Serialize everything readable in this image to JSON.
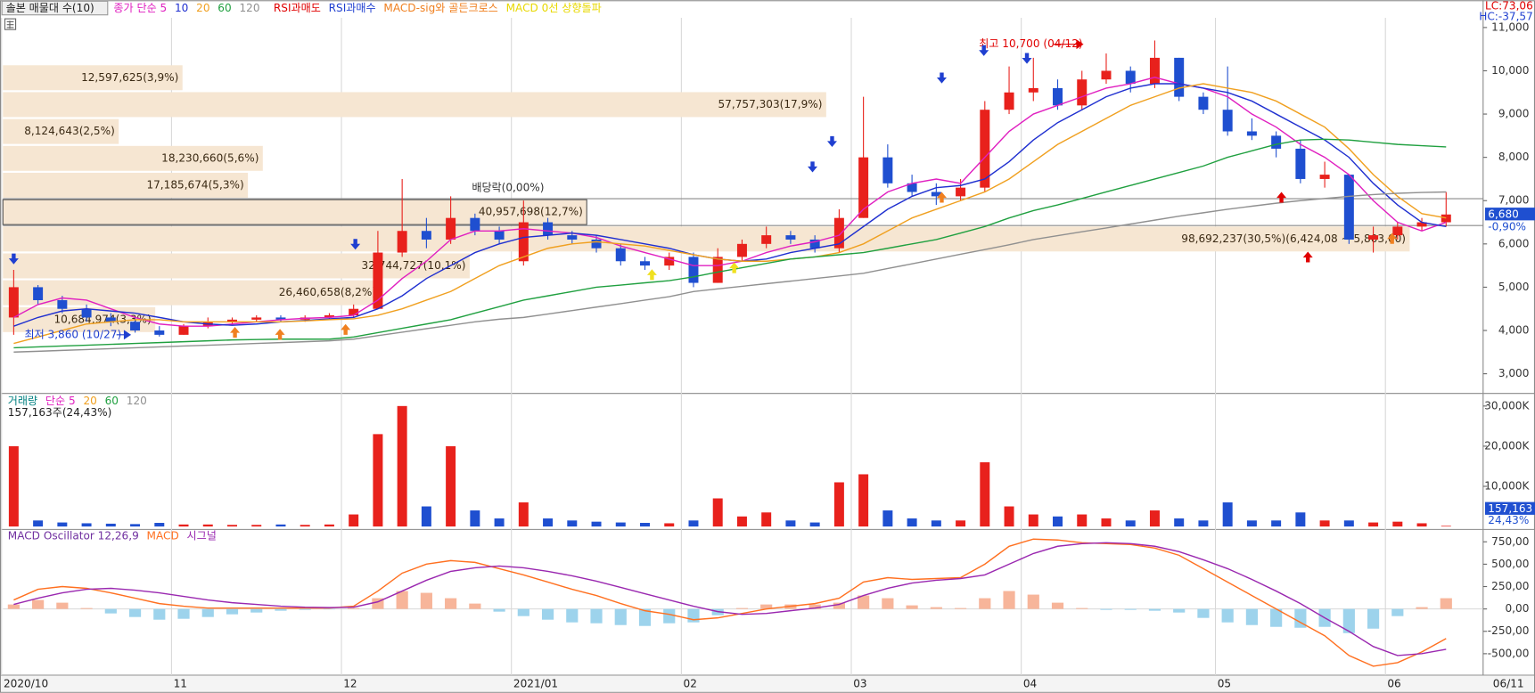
{
  "toolbar_title": "솔본 매물대 수(10)",
  "chart_data": [
    {
      "type": "candlestick",
      "categories": [
        "2020/10",
        null,
        null,
        null,
        null,
        null,
        null,
        "11",
        null,
        null,
        null,
        null,
        null,
        null,
        "12",
        null,
        null,
        null,
        null,
        null,
        null,
        "2021/01",
        null,
        null,
        null,
        null,
        null,
        null,
        "02",
        null,
        null,
        null,
        null,
        null,
        null,
        "03",
        null,
        null,
        null,
        null,
        null,
        null,
        "04",
        null,
        null,
        null,
        null,
        null,
        null,
        null,
        "05",
        null,
        null,
        null,
        null,
        null,
        null,
        "06",
        null,
        null
      ],
      "end_label": "06/11",
      "open": [
        4300,
        5000,
        4700,
        4500,
        4300,
        4200,
        4000,
        3900,
        4100,
        4200,
        4250,
        4300,
        4250,
        4300,
        4350,
        4500,
        5800,
        6300,
        6100,
        6600,
        6300,
        5600,
        6500,
        6200,
        6100,
        5900,
        5600,
        5500,
        5700,
        5100,
        5700,
        6000,
        6200,
        6100,
        5900,
        6600,
        8000,
        7400,
        7200,
        7100,
        7300,
        9100,
        9500,
        9600,
        9200,
        9800,
        10000,
        9700,
        10300,
        9400,
        9100,
        8600,
        8500,
        8200,
        7500,
        7600,
        6100,
        6200,
        6400,
        6500
      ],
      "high": [
        5400,
        5050,
        4800,
        4600,
        4400,
        4300,
        4100,
        4150,
        4300,
        4300,
        4350,
        4350,
        4350,
        4400,
        4600,
        6300,
        7500,
        6600,
        7100,
        6700,
        6400,
        7000,
        6600,
        6300,
        6200,
        6000,
        5700,
        5800,
        5800,
        5900,
        6100,
        6400,
        6300,
        6200,
        6800,
        9400,
        8300,
        7600,
        7400,
        7500,
        9300,
        10100,
        10300,
        9800,
        10000,
        10400,
        10100,
        10700,
        10300,
        9500,
        10100,
        8900,
        8600,
        8400,
        7900,
        7600,
        6400,
        6500,
        6600,
        7200
      ],
      "low": [
        3900,
        4600,
        4400,
        4200,
        4100,
        3950,
        3860,
        3900,
        4050,
        4150,
        4200,
        4200,
        4200,
        4250,
        4300,
        4500,
        5700,
        5900,
        6000,
        6200,
        6000,
        5500,
        6100,
        6000,
        5800,
        5500,
        5400,
        5400,
        5000,
        5100,
        5600,
        5900,
        6000,
        5800,
        5800,
        6600,
        7300,
        7100,
        6900,
        7000,
        7200,
        9000,
        9300,
        9100,
        9100,
        9700,
        9500,
        9600,
        9300,
        9000,
        8500,
        8400,
        8000,
        7400,
        7300,
        6000,
        5800,
        6100,
        6300,
        6400
      ],
      "close": [
        5000,
        4700,
        4500,
        4300,
        4200,
        4000,
        3900,
        4100,
        4200,
        4250,
        4300,
        4250,
        4300,
        4350,
        4500,
        5800,
        6300,
        6100,
        6600,
        6300,
        6100,
        6500,
        6200,
        6100,
        5900,
        5600,
        5500,
        5700,
        5100,
        5700,
        6000,
        6200,
        6100,
        5900,
        6600,
        8000,
        7400,
        7200,
        7100,
        7300,
        9100,
        9500,
        9600,
        9200,
        9800,
        10000,
        9700,
        10300,
        9400,
        9100,
        8600,
        8500,
        8200,
        7500,
        7600,
        6100,
        6200,
        6400,
        6500,
        6680
      ],
      "up_color": "#e8211c",
      "down_color": "#1f4fd0",
      "series": [
        {
          "name": "종가 단순 5",
          "color": "#e020c0",
          "values": [
            4300,
            4600,
            4750,
            4700,
            4500,
            4300,
            4150,
            4100,
            4100,
            4150,
            4200,
            4250,
            4280,
            4300,
            4350,
            4700,
            5200,
            5600,
            6100,
            6300,
            6300,
            6350,
            6300,
            6250,
            6150,
            5950,
            5800,
            5650,
            5500,
            5500,
            5600,
            5800,
            5950,
            6050,
            6200,
            6800,
            7200,
            7400,
            7500,
            7400,
            8000,
            8600,
            9000,
            9200,
            9400,
            9600,
            9700,
            9850,
            9700,
            9600,
            9400,
            9000,
            8700,
            8300,
            8000,
            7600,
            7000,
            6500,
            6300,
            6500
          ]
        },
        {
          "name": "10",
          "color": "#2030d0",
          "values": [
            4100,
            4300,
            4450,
            4500,
            4450,
            4400,
            4300,
            4200,
            4150,
            4120,
            4150,
            4200,
            4230,
            4270,
            4300,
            4500,
            4800,
            5200,
            5500,
            5800,
            6000,
            6150,
            6200,
            6250,
            6200,
            6100,
            6000,
            5900,
            5750,
            5650,
            5600,
            5650,
            5800,
            5900,
            6000,
            6400,
            6800,
            7100,
            7300,
            7350,
            7500,
            7900,
            8400,
            8800,
            9100,
            9400,
            9600,
            9700,
            9700,
            9600,
            9500,
            9300,
            9000,
            8700,
            8400,
            8000,
            7400,
            6900,
            6500,
            6400
          ]
        },
        {
          "name": "20",
          "color": "#f0a020",
          "values": [
            3700,
            3850,
            4000,
            4150,
            4200,
            4250,
            4250,
            4200,
            4200,
            4200,
            4200,
            4200,
            4220,
            4250,
            4270,
            4350,
            4500,
            4700,
            4900,
            5200,
            5500,
            5700,
            5900,
            6000,
            6050,
            6000,
            5950,
            5850,
            5750,
            5650,
            5600,
            5600,
            5650,
            5700,
            5800,
            6000,
            6300,
            6600,
            6800,
            7000,
            7200,
            7500,
            7900,
            8300,
            8600,
            8900,
            9200,
            9400,
            9600,
            9700,
            9600,
            9500,
            9300,
            9000,
            8700,
            8200,
            7600,
            7100,
            6700,
            6600
          ]
        },
        {
          "name": "60",
          "color": "#20a040",
          "values": [
            3600,
            3620,
            3640,
            3660,
            3680,
            3700,
            3720,
            3740,
            3760,
            3780,
            3790,
            3800,
            3800,
            3800,
            3850,
            3950,
            4050,
            4150,
            4250,
            4400,
            4550,
            4700,
            4800,
            4900,
            5000,
            5050,
            5100,
            5150,
            5240,
            5350,
            5450,
            5550,
            5650,
            5700,
            5750,
            5800,
            5900,
            6000,
            6100,
            6250,
            6400,
            6600,
            6770,
            6900,
            7050,
            7200,
            7350,
            7500,
            7650,
            7800,
            8000,
            8150,
            8300,
            8400,
            8420,
            8400,
            8350,
            8300,
            8270,
            8240
          ]
        },
        {
          "name": "120",
          "color": "#909090",
          "values": [
            3500,
            3520,
            3540,
            3560,
            3580,
            3600,
            3620,
            3640,
            3660,
            3680,
            3700,
            3720,
            3740,
            3760,
            3800,
            3880,
            3960,
            4040,
            4120,
            4200,
            4260,
            4300,
            4380,
            4460,
            4540,
            4620,
            4700,
            4780,
            4900,
            4960,
            5020,
            5080,
            5140,
            5200,
            5260,
            5320,
            5430,
            5540,
            5650,
            5760,
            5870,
            5980,
            6100,
            6190,
            6280,
            6370,
            6460,
            6550,
            6640,
            6720,
            6800,
            6870,
            6940,
            7000,
            7050,
            7100,
            7140,
            7170,
            7190,
            7200
          ]
        }
      ],
      "signals": [
        {
          "name": "RSI과매도",
          "color": "#e00000"
        },
        {
          "name": "RSI과매수",
          "color": "#1f3fd0"
        },
        {
          "name": "MACD-sig와 골든크로스",
          "color": "#f08020"
        },
        {
          "name": "MACD 0선 상향돌파",
          "color": "#e8d800"
        }
      ],
      "volume_profile": {
        "bins": [
          3940,
          4561,
          5182,
          5803,
          6424,
          7045,
          7666,
          8287,
          8908,
          9529,
          10150
        ],
        "values": [
          10684974,
          26460658,
          32744727,
          98692237,
          40957698,
          17185674,
          18230660,
          8124643,
          57757303,
          12597625
        ],
        "value_labels": [
          "10,684,974(3,3%)",
          "26,460,658(8,2%)",
          "32,744,727(10,1%)",
          "98,692,237(30,5%)(6,424,08 ~ 5,803,00)",
          "40,957,698(12,7%)",
          "17,185,674(5,3%)",
          "18,230,660(5,6%)",
          "8,124,643(2,5%)",
          "57,757,303(17,9%)",
          "12,597,625(3,9%)"
        ],
        "color": "#f6e6d2"
      },
      "annotations": [
        "최고 10,700 (04/12)",
        "최저 3,860 (10/27)",
        "배당락(0,00%)"
      ],
      "readouts": [
        "LC:73,06",
        "HC:-37,57"
      ],
      "last_price": {
        "value": 6680,
        "label": "6,680"
      },
      "last_change": "-0,90%",
      "ylim": [
        2590,
        11450
      ],
      "yticks": [
        {
          "value": 3000,
          "label": "3,000"
        },
        {
          "value": 4000,
          "label": "4,000"
        },
        {
          "value": 5000,
          "label": "5,000"
        },
        {
          "value": 6000,
          "label": "6,000"
        },
        {
          "value": 7000,
          "label": "7,000"
        },
        {
          "value": 8000,
          "label": "8,000"
        },
        {
          "value": 9000,
          "label": "9,000"
        },
        {
          "value": 10000,
          "label": "10,000"
        },
        {
          "value": 11000,
          "label": "11,000"
        }
      ],
      "grid": false
    },
    {
      "type": "bar",
      "legend": [
        {
          "name": "거래량",
          "color": "#008080"
        },
        {
          "name": "단순 5",
          "color": "#e020c0"
        },
        {
          "name": "20",
          "color": "#f0a020"
        },
        {
          "name": "60",
          "color": "#20a040"
        },
        {
          "name": "120",
          "color": "#909090"
        }
      ],
      "readout": "157,163주(24,43%)",
      "values": [
        20000000,
        1500000,
        1000000,
        800000,
        700000,
        600000,
        900000,
        500000,
        500000,
        400000,
        400000,
        500000,
        400000,
        500000,
        3000000,
        23000000,
        30000000,
        5000000,
        20000000,
        4000000,
        2000000,
        6000000,
        2000000,
        1500000,
        1200000,
        1000000,
        900000,
        800000,
        1500000,
        7000000,
        2500000,
        3500000,
        1500000,
        1000000,
        11000000,
        13000000,
        4000000,
        2000000,
        1500000,
        1500000,
        16000000,
        5000000,
        3000000,
        2500000,
        3000000,
        2000000,
        1500000,
        4000000,
        2000000,
        1500000,
        6000000,
        1500000,
        1500000,
        3500000,
        1500000,
        1500000,
        1000000,
        1200000,
        800000,
        157163
      ],
      "last_value": {
        "value": 157163,
        "label": "157,163"
      },
      "last_change": "24,43%",
      "ylim": [
        0,
        32400000
      ],
      "yticks": [
        {
          "value": 10000000,
          "label": "10,000K"
        },
        {
          "value": 20000000,
          "label": "20,000K"
        },
        {
          "value": 30000000,
          "label": "30,000K"
        }
      ],
      "grid": false
    },
    {
      "type": "macd",
      "title": "MACD Oscillator 12,26,9",
      "title_color": "#7030a0",
      "oscillator": {
        "up_color": "#f7b59a",
        "down_color": "#9dd3ec",
        "values": [
          50,
          100,
          70,
          10,
          -50,
          -90,
          -120,
          -110,
          -90,
          -60,
          -40,
          -20,
          -10,
          -5,
          10,
          120,
          200,
          180,
          120,
          60,
          -30,
          -80,
          -120,
          -150,
          -160,
          -180,
          -190,
          -160,
          -150,
          -70,
          10,
          50,
          50,
          50,
          70,
          150,
          120,
          40,
          20,
          10,
          120,
          200,
          160,
          70,
          10,
          -10,
          -10,
          -20,
          -40,
          -100,
          -150,
          -180,
          -200,
          -210,
          -200,
          -270,
          -220,
          -80,
          20,
          120
        ]
      },
      "series": [
        {
          "name": "MACD",
          "color": "#ff7020",
          "values": [
            100,
            220,
            250,
            230,
            180,
            120,
            60,
            30,
            10,
            10,
            10,
            10,
            10,
            10,
            30,
            200,
            400,
            500,
            540,
            520,
            450,
            380,
            300,
            220,
            150,
            60,
            -20,
            -60,
            -120,
            -100,
            -50,
            0,
            30,
            60,
            120,
            300,
            350,
            330,
            340,
            350,
            500,
            700,
            780,
            770,
            740,
            730,
            720,
            680,
            600,
            450,
            300,
            150,
            0,
            -150,
            -300,
            -520,
            -640,
            -600,
            -480,
            -330
          ]
        },
        {
          "name": "시그널",
          "color": "#9a28b0",
          "values": [
            50,
            120,
            180,
            220,
            230,
            210,
            180,
            140,
            100,
            70,
            50,
            30,
            20,
            15,
            20,
            80,
            200,
            320,
            420,
            460,
            480,
            460,
            420,
            370,
            310,
            240,
            170,
            100,
            30,
            -30,
            -60,
            -50,
            -20,
            10,
            50,
            150,
            230,
            290,
            320,
            340,
            380,
            500,
            620,
            700,
            730,
            740,
            730,
            700,
            640,
            550,
            450,
            330,
            200,
            60,
            -100,
            -250,
            -420,
            -520,
            -500,
            -450
          ]
        }
      ],
      "ylim": [
        -740,
        790
      ],
      "yticks": [
        {
          "value": -500,
          "label": "-500,00"
        },
        {
          "value": -250,
          "label": "-250,00"
        },
        {
          "value": 0,
          "label": "0,00"
        },
        {
          "value": 250,
          "label": "250,00"
        },
        {
          "value": 500,
          "label": "500,00"
        },
        {
          "value": 750,
          "label": "750,00"
        }
      ],
      "grid": false
    }
  ]
}
